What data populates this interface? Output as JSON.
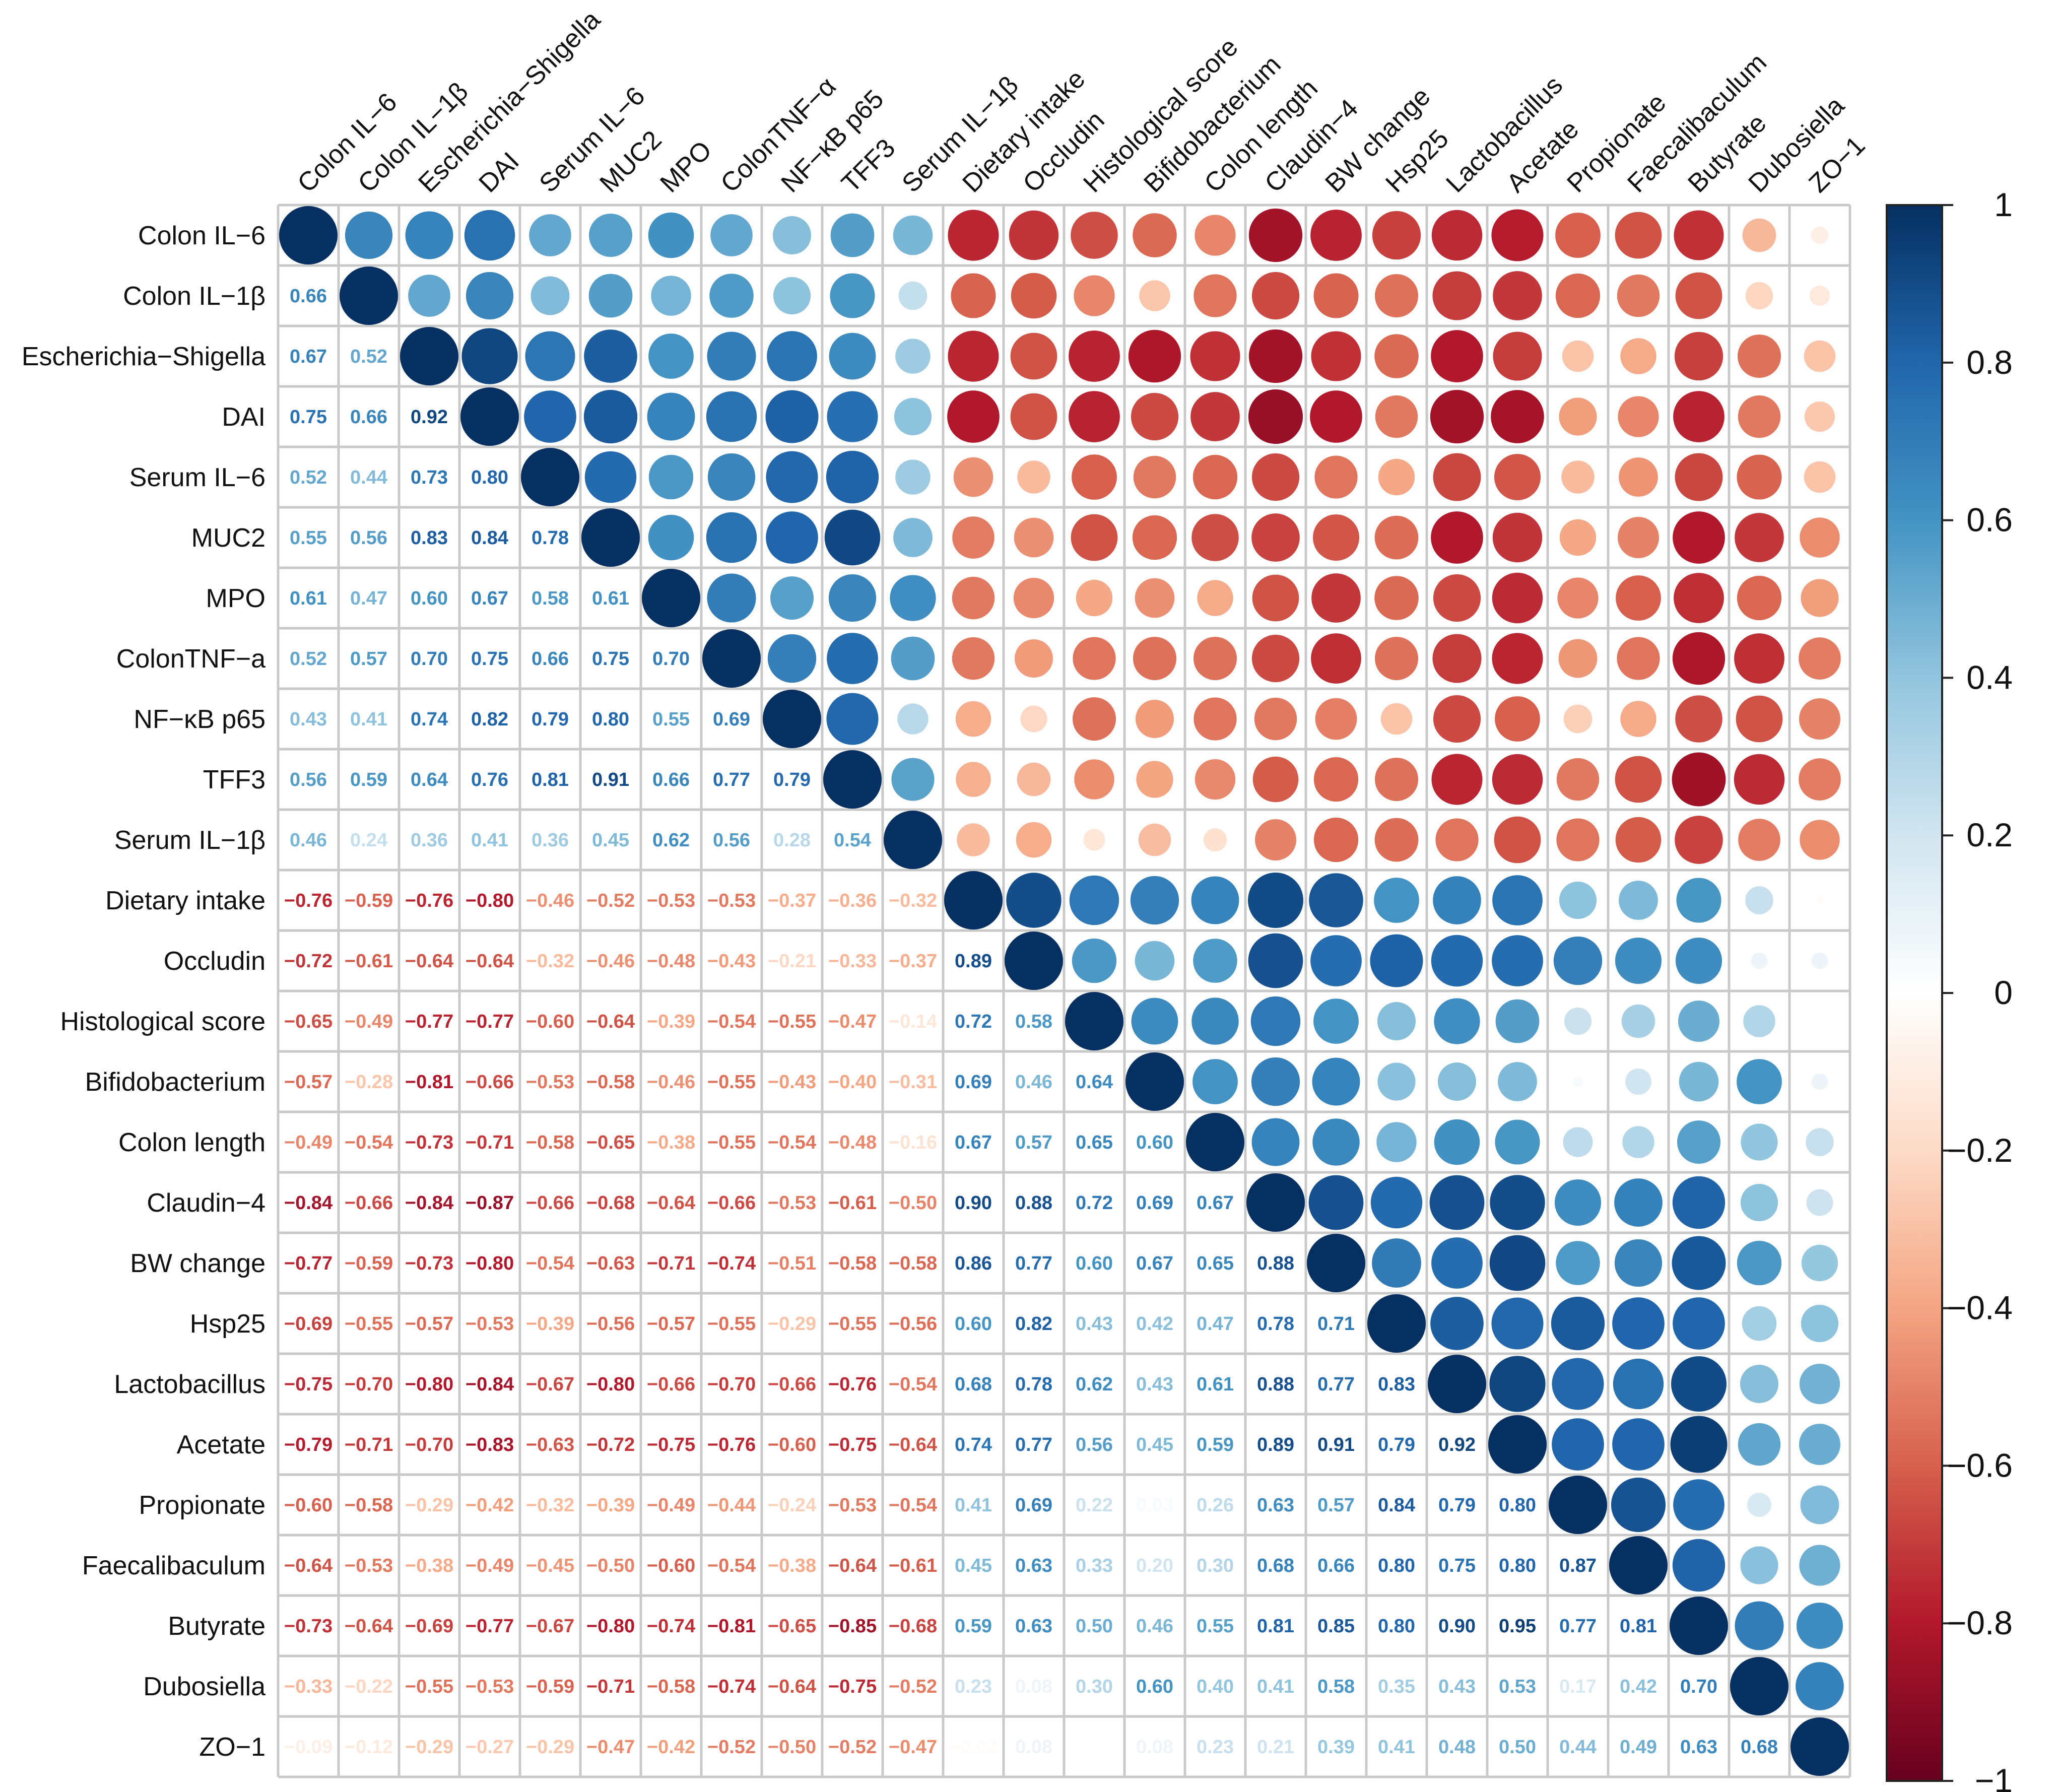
{
  "chart_data": {
    "type": "heatmap",
    "style": "correlation matrix: circles in upper triangle, numeric coefficients in lower triangle",
    "variables": [
      "Colon IL−6",
      "Colon IL−1β",
      "Escherichia−Shigella",
      "DAI",
      "Serum IL−6",
      "MUC2",
      "MPO",
      "ColonTNF−a",
      "NF−κB p65",
      "TFF3",
      "Serum IL−1β",
      "Dietary intake",
      "Occludin",
      "Histological score",
      "Bifidobacterium",
      "Colon length",
      "Claudin−4",
      "BW change",
      "Hsp25",
      "Lactobacillus",
      "Acetate",
      "Propionate",
      "Faecalibaculum",
      "Butyrate",
      "Dubosiella",
      "ZO−1"
    ],
    "column_labels": [
      "Colon IL−6",
      "Colon IL−1β",
      "Escherichia−Shigella",
      "DAI",
      "Serum IL−6",
      "MUC2",
      "MPO",
      "ColonTNF−α",
      "NF−κB p65",
      "TFF3",
      "Serum IL−1β",
      "Dietary intake",
      "Occludin",
      "Histological score",
      "Bifidobacterium",
      "Colon length",
      "Claudin−4",
      "BW change",
      "Hsp25",
      "Lactobacillus",
      "Acetate",
      "Propionate",
      "Faecalibaculum",
      "Butyrate",
      "Dubosiella",
      "ZO−1"
    ],
    "lower_triangle": [
      [],
      [
        0.66
      ],
      [
        0.67,
        0.52
      ],
      [
        0.75,
        0.66,
        0.92
      ],
      [
        0.52,
        0.44,
        0.73,
        0.8
      ],
      [
        0.55,
        0.56,
        0.83,
        0.84,
        0.78
      ],
      [
        0.61,
        0.47,
        0.6,
        0.67,
        0.58,
        0.61
      ],
      [
        0.52,
        0.57,
        0.7,
        0.75,
        0.66,
        0.75,
        0.7
      ],
      [
        0.43,
        0.41,
        0.74,
        0.82,
        0.79,
        0.8,
        0.55,
        0.69
      ],
      [
        0.56,
        0.59,
        0.64,
        0.76,
        0.81,
        0.91,
        0.66,
        0.77,
        0.79
      ],
      [
        0.46,
        0.24,
        0.36,
        0.41,
        0.36,
        0.45,
        0.62,
        0.56,
        0.28,
        0.54
      ],
      [
        -0.76,
        -0.59,
        -0.76,
        -0.8,
        -0.46,
        -0.52,
        -0.53,
        -0.53,
        -0.37,
        -0.36,
        -0.32
      ],
      [
        -0.72,
        -0.61,
        -0.64,
        -0.64,
        -0.32,
        -0.46,
        -0.48,
        -0.43,
        -0.21,
        -0.33,
        -0.37,
        0.89
      ],
      [
        -0.65,
        -0.49,
        -0.77,
        -0.77,
        -0.6,
        -0.64,
        -0.39,
        -0.54,
        -0.55,
        -0.47,
        -0.14,
        0.72,
        0.58
      ],
      [
        -0.57,
        -0.28,
        -0.81,
        -0.66,
        -0.53,
        -0.58,
        -0.46,
        -0.55,
        -0.43,
        -0.4,
        -0.31,
        0.69,
        0.46,
        0.64
      ],
      [
        -0.49,
        -0.54,
        -0.73,
        -0.71,
        -0.58,
        -0.65,
        -0.38,
        -0.55,
        -0.54,
        -0.48,
        -0.16,
        0.67,
        0.57,
        0.65,
        0.6
      ],
      [
        -0.84,
        -0.66,
        -0.84,
        -0.87,
        -0.66,
        -0.68,
        -0.64,
        -0.66,
        -0.53,
        -0.61,
        -0.5,
        0.9,
        0.88,
        0.72,
        0.69,
        0.67
      ],
      [
        -0.77,
        -0.59,
        -0.73,
        -0.8,
        -0.54,
        -0.63,
        -0.71,
        -0.74,
        -0.51,
        -0.58,
        -0.58,
        0.86,
        0.77,
        0.6,
        0.67,
        0.65,
        0.88
      ],
      [
        -0.69,
        -0.55,
        -0.57,
        -0.53,
        -0.39,
        -0.56,
        -0.57,
        -0.55,
        -0.29,
        -0.55,
        -0.56,
        0.6,
        0.82,
        0.43,
        0.42,
        0.47,
        0.78,
        0.71
      ],
      [
        -0.75,
        -0.7,
        -0.8,
        -0.84,
        -0.67,
        -0.8,
        -0.66,
        -0.7,
        -0.66,
        -0.76,
        -0.54,
        0.68,
        0.78,
        0.62,
        0.43,
        0.61,
        0.88,
        0.77,
        0.83
      ],
      [
        -0.79,
        -0.71,
        -0.7,
        -0.83,
        -0.63,
        -0.72,
        -0.75,
        -0.76,
        -0.6,
        -0.75,
        -0.64,
        0.74,
        0.77,
        0.56,
        0.45,
        0.59,
        0.89,
        0.91,
        0.79,
        0.92
      ],
      [
        -0.6,
        -0.58,
        -0.29,
        -0.42,
        -0.32,
        -0.39,
        -0.49,
        -0.44,
        -0.24,
        -0.53,
        -0.54,
        0.41,
        0.69,
        0.22,
        0.03,
        0.26,
        0.63,
        0.57,
        0.84,
        0.79,
        0.8
      ],
      [
        -0.64,
        -0.53,
        -0.38,
        -0.49,
        -0.45,
        -0.5,
        -0.6,
        -0.54,
        -0.38,
        -0.64,
        -0.61,
        0.45,
        0.63,
        0.33,
        0.2,
        0.3,
        0.68,
        0.66,
        0.8,
        0.75,
        0.8,
        0.87
      ],
      [
        -0.73,
        -0.64,
        -0.69,
        -0.77,
        -0.67,
        -0.8,
        -0.74,
        -0.81,
        -0.65,
        -0.85,
        -0.68,
        0.59,
        0.63,
        0.5,
        0.46,
        0.55,
        0.81,
        0.85,
        0.8,
        0.9,
        0.95,
        0.77,
        0.81
      ],
      [
        -0.33,
        -0.22,
        -0.55,
        -0.53,
        -0.59,
        -0.71,
        -0.58,
        -0.74,
        -0.64,
        -0.75,
        -0.52,
        0.23,
        0.08,
        0.3,
        0.6,
        0.4,
        0.41,
        0.58,
        0.35,
        0.43,
        0.53,
        0.17,
        0.42,
        0.7
      ],
      [
        -0.09,
        -0.12,
        -0.29,
        -0.27,
        -0.29,
        -0.47,
        -0.42,
        -0.52,
        -0.5,
        -0.52,
        -0.47,
        -0.02,
        0.08,
        0.0,
        0.08,
        0.23,
        0.21,
        0.39,
        0.41,
        0.48,
        0.5,
        0.44,
        0.49,
        0.63,
        0.68
      ]
    ],
    "color_scale": {
      "range": [
        -1,
        1
      ],
      "ticks": [
        1,
        0.8,
        0.6,
        0.4,
        0.2,
        0,
        -0.2,
        -0.4,
        -0.6,
        -0.8,
        -1
      ],
      "tick_labels": [
        "1",
        "0.8",
        "0.6",
        "0.4",
        "0.2",
        "0",
        "−0.2",
        "−0.4",
        "−0.6",
        "−0.8",
        "−1"
      ],
      "stops": [
        "#67001f",
        "#b2182b",
        "#d6604d",
        "#f4a582",
        "#fddbc7",
        "#ffffff",
        "#d1e5f0",
        "#92c5de",
        "#4393c3",
        "#2166ac",
        "#053061"
      ]
    },
    "legend_position": "right"
  }
}
